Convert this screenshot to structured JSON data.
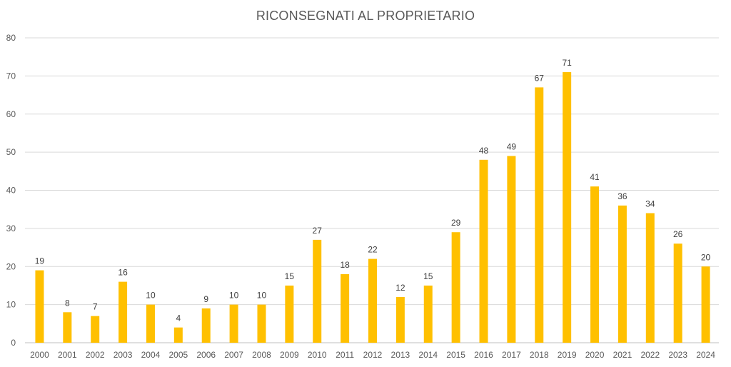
{
  "chart_data": {
    "type": "bar",
    "title": "RICONSEGNATI AL PROPRIETARIO",
    "categories": [
      "2000",
      "2001",
      "2002",
      "2003",
      "2004",
      "2005",
      "2006",
      "2007",
      "2008",
      "2009",
      "2010",
      "2011",
      "2012",
      "2013",
      "2014",
      "2015",
      "2016",
      "2017",
      "2018",
      "2019",
      "2020",
      "2021",
      "2022",
      "2023",
      "2024"
    ],
    "values": [
      19,
      8,
      7,
      16,
      10,
      4,
      9,
      10,
      10,
      15,
      27,
      18,
      22,
      12,
      15,
      29,
      48,
      49,
      67,
      71,
      41,
      36,
      34,
      26,
      20
    ],
    "y_ticks": [
      "0",
      "10",
      "20",
      "30",
      "40",
      "50",
      "60",
      "70",
      "80"
    ],
    "ylim": [
      0,
      80
    ],
    "grid": true,
    "legend": "none",
    "bar_color": "#FFC000",
    "data_labels": true
  }
}
